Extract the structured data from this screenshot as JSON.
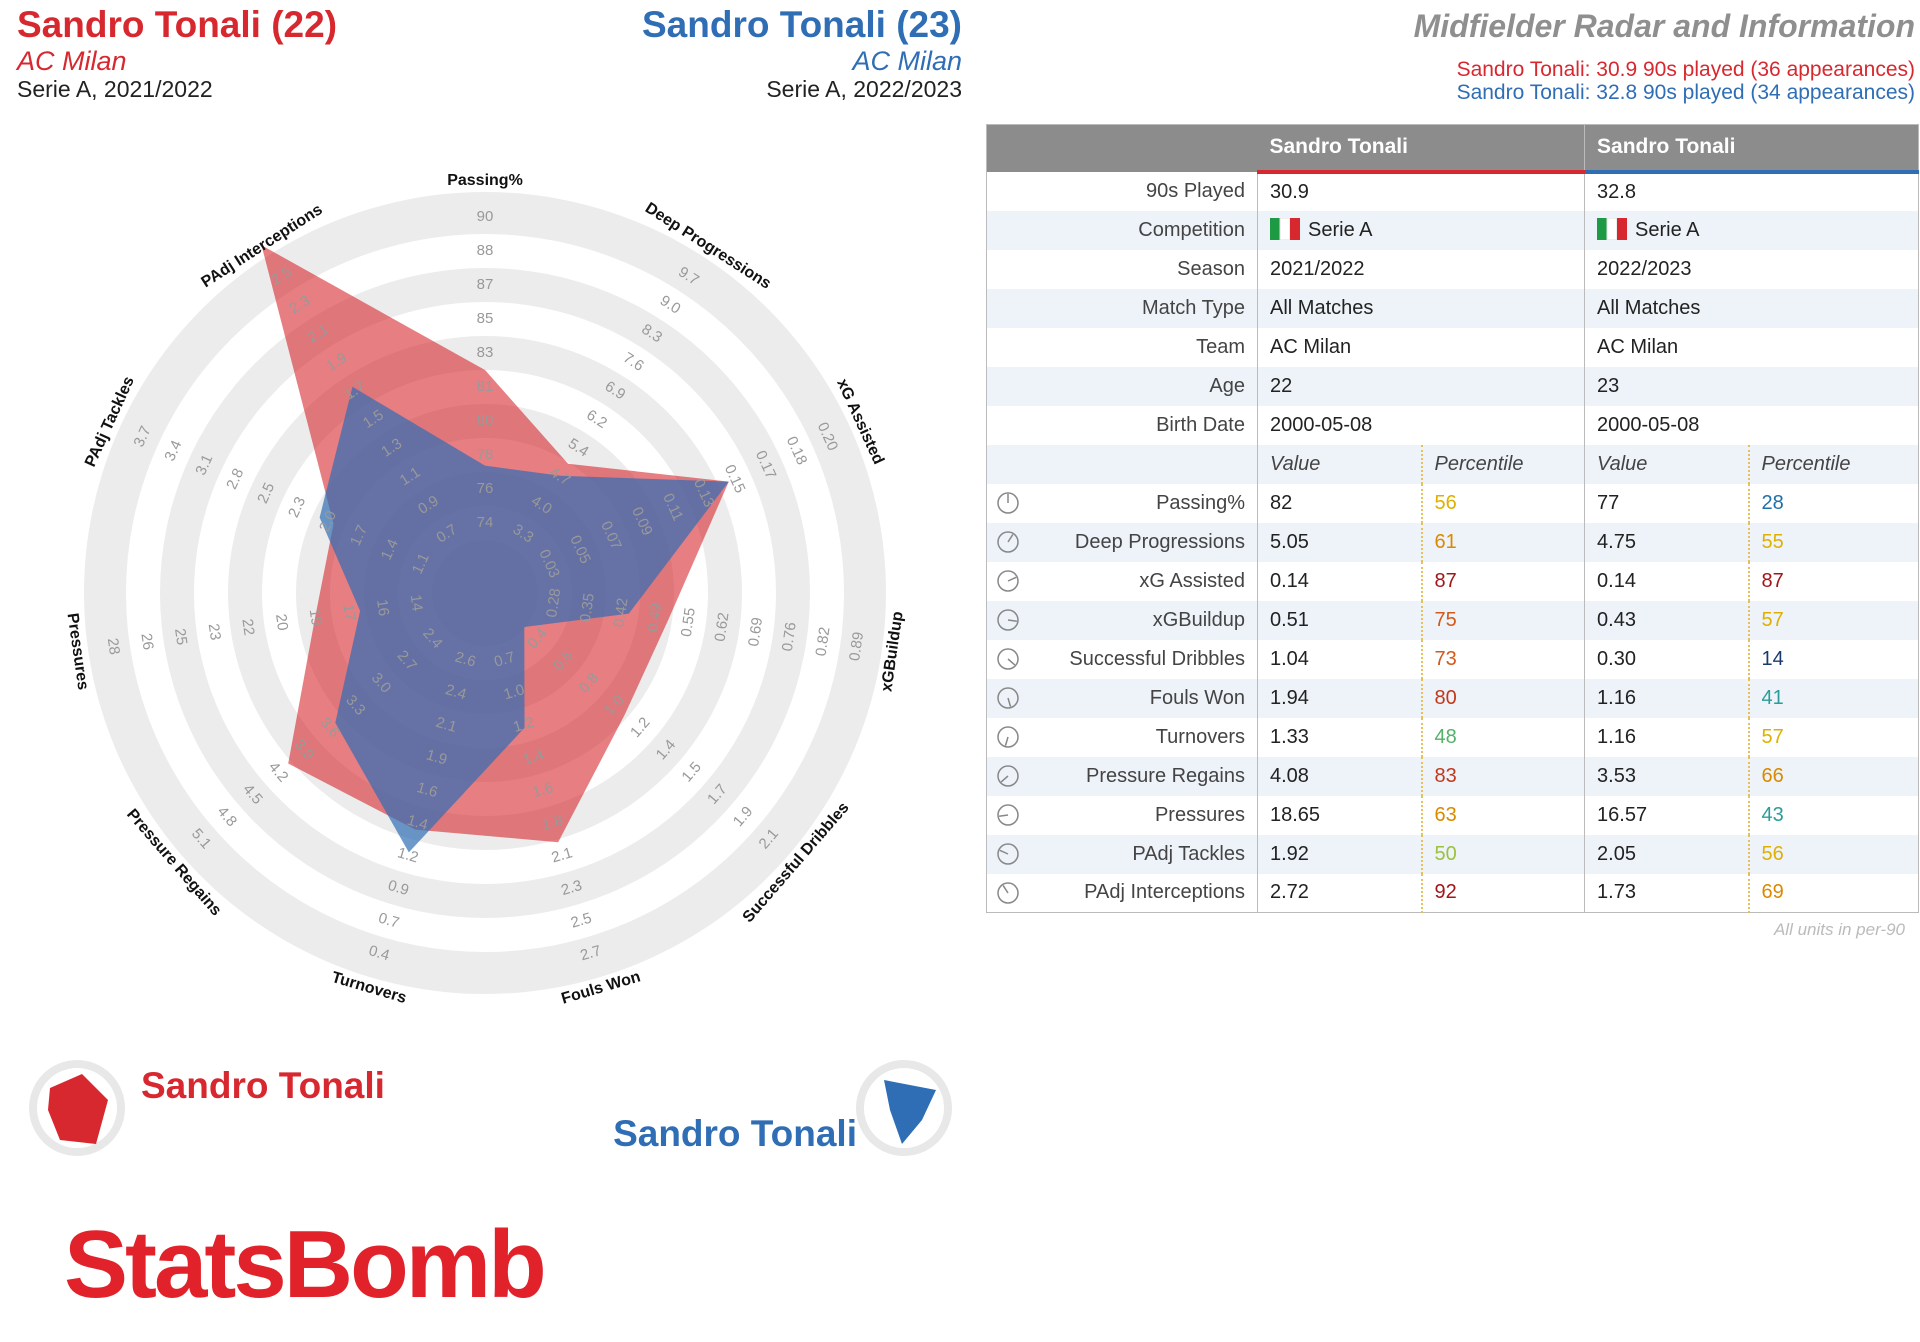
{
  "header": {
    "left": {
      "title": "Sandro Tonali (22)",
      "team": "AC Milan",
      "season": "Serie A, 2021/2022"
    },
    "center": {
      "title": "Sandro Tonali (23)",
      "team": "AC Milan",
      "season": "Serie A, 2022/2023"
    },
    "right": {
      "title": "Midfielder Radar and Information",
      "lines": [
        "Sandro Tonali: 30.9 90s played (36 appearances)",
        "Sandro Tonali: 32.8 90s played (34 appearances)"
      ]
    }
  },
  "chart_data": {
    "type": "radar",
    "axes": [
      {
        "label": "Passing%",
        "ticks": [
          74,
          76,
          78,
          80,
          81,
          83,
          85,
          87,
          88,
          90
        ]
      },
      {
        "label": "Deep Progressions",
        "ticks": [
          3.3,
          {
            "value": 4,
            "label": "4.0"
          },
          4.7,
          5.4,
          6.2,
          6.9,
          7.6,
          8.3,
          {
            "value": 9,
            "label": "9.0"
          },
          9.7
        ]
      },
      {
        "label": "xG Assisted",
        "ticks": [
          0.03,
          0.05,
          0.07,
          0.09,
          0.11,
          0.13,
          0.15,
          0.17,
          0.18,
          {
            "value": 0.2,
            "label": "0.20"
          }
        ]
      },
      {
        "label": "xGBuildup",
        "ticks": [
          0.28,
          0.35,
          0.42,
          0.49,
          0.55,
          0.62,
          0.69,
          0.76,
          0.82,
          0.89
        ]
      },
      {
        "label": "Successful Dribbles",
        "ticks": [
          0.4,
          0.6,
          0.8,
          {
            "value": 1,
            "label": "1.0"
          },
          1.2,
          1.4,
          1.5,
          1.7,
          1.9,
          2.1
        ]
      },
      {
        "label": "Fouls Won",
        "ticks": [
          0.7,
          {
            "value": 1,
            "label": "1.0"
          },
          1.2,
          1.4,
          1.6,
          1.8,
          2.1,
          2.3,
          2.5,
          2.7
        ]
      },
      {
        "label": "Turnovers",
        "ticks": [
          2.6,
          2.4,
          2.1,
          1.9,
          1.6,
          1.4,
          1.2,
          0.9,
          0.7,
          0.4
        ]
      },
      {
        "label": "Pressure Regains",
        "ticks": [
          2.4,
          2.7,
          {
            "value": 3,
            "label": "3.0"
          },
          3.3,
          3.6,
          3.9,
          4.2,
          4.5,
          4.8,
          5.1
        ]
      },
      {
        "label": "Pressures",
        "ticks": [
          14,
          16,
          17,
          19,
          20,
          22,
          23,
          25,
          26,
          28
        ]
      },
      {
        "label": "PAdj Tackles",
        "ticks": [
          1.1,
          1.4,
          1.7,
          {
            "value": 2,
            "label": "2.0"
          },
          2.3,
          2.5,
          2.8,
          3.1,
          3.4,
          3.7
        ]
      },
      {
        "label": "PAdj Interceptions",
        "ticks": [
          0.7,
          0.9,
          1.1,
          1.3,
          1.5,
          1.7,
          1.9,
          2.1,
          2.3,
          2.5
        ]
      }
    ],
    "series": [
      {
        "name": "Sandro Tonali",
        "color": "#d7282f",
        "values": [
          82,
          5.05,
          0.14,
          0.51,
          1.04,
          1.94,
          1.33,
          4.08,
          18.65,
          1.92,
          2.72
        ],
        "value_labels": [
          "82",
          "5.05",
          "0.14",
          "0.51",
          "1.04",
          "1.94",
          "1.33",
          "4.08",
          "18.65",
          "1.92",
          "2.72"
        ],
        "percentiles": [
          56,
          61,
          87,
          75,
          73,
          80,
          48,
          83,
          63,
          50,
          92
        ]
      },
      {
        "name": "Sandro Tonali",
        "color": "#2f6db5",
        "values": [
          77,
          4.75,
          0.14,
          0.43,
          0.3,
          1.16,
          1.16,
          3.53,
          16.57,
          2.05,
          1.73
        ],
        "value_labels": [
          "77",
          "4.75",
          "0.14",
          "0.43",
          "0.30",
          "1.16",
          "1.16",
          "3.53",
          "16.57",
          "2.05",
          "1.73"
        ],
        "percentiles": [
          28,
          55,
          87,
          57,
          14,
          41,
          57,
          66,
          43,
          56,
          69
        ]
      }
    ]
  },
  "table": {
    "info": [
      {
        "label": "90s Played",
        "values": [
          "30.9",
          "32.8"
        ]
      },
      {
        "label": "Competition",
        "values": [
          "Serie A",
          "Serie A"
        ]
      },
      {
        "label": "Season",
        "values": [
          "2021/2022",
          "2022/2023"
        ]
      },
      {
        "label": "Match Type",
        "values": [
          "All Matches",
          "All Matches"
        ]
      },
      {
        "label": "Team",
        "values": [
          "AC Milan",
          "AC Milan"
        ]
      },
      {
        "label": "Age",
        "values": [
          "22",
          "23"
        ]
      },
      {
        "label": "Birth Date",
        "values": [
          "2000-05-08",
          "2000-05-08"
        ]
      }
    ],
    "subheaders": [
      "Value",
      "Percentile",
      "Value",
      "Percentile"
    ],
    "footnote": "All units in per-90"
  },
  "logo": "StatsBomb"
}
